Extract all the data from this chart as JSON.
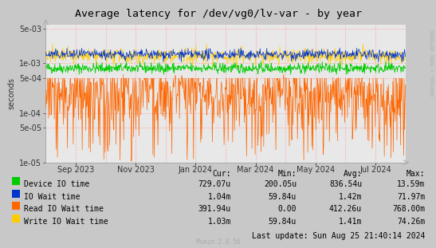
{
  "title": "Average latency for /dev/vg0/lv-var - by year",
  "ylabel": "seconds",
  "background_color": "#c8c8c8",
  "plot_background_color": "#e8e8e8",
  "grid_color": "#ffaaaa",
  "title_fontsize": 9.5,
  "axis_fontsize": 7,
  "legend_fontsize": 7,
  "ylim_log": [
    1e-05,
    0.006
  ],
  "yticks": [
    1e-05,
    5e-05,
    0.0001,
    0.0005,
    0.001,
    0.005
  ],
  "ytick_labels": [
    "1e-05",
    "5e-05",
    "1e-04",
    "5e-04",
    "1e-03",
    "5e-03"
  ],
  "x_labels": [
    "Sep 2023",
    "Nov 2023",
    "Jan 2024",
    "Mar 2024",
    "May 2024",
    "Jul 2024"
  ],
  "colors": {
    "device_io": "#00cc00",
    "io_wait": "#0033cc",
    "read_io_wait": "#ff6600",
    "write_io_wait": "#ffcc00"
  },
  "legend_entries": [
    {
      "label": "Device IO time",
      "color": "#00cc00"
    },
    {
      "label": "IO Wait time",
      "color": "#0033cc"
    },
    {
      "label": "Read IO Wait time",
      "color": "#ff6600"
    },
    {
      "label": "Write IO Wait time",
      "color": "#ffcc00"
    }
  ],
  "table_headers": [
    "Cur:",
    "Min:",
    "Avg:",
    "Max:"
  ],
  "table_rows": [
    [
      "Device IO time",
      "729.07u",
      "200.05u",
      "836.54u",
      "13.59m"
    ],
    [
      "IO Wait time",
      "1.04m",
      "59.84u",
      "1.42m",
      "71.97m"
    ],
    [
      "Read IO Wait time",
      "391.94u",
      "0.00",
      "412.26u",
      "768.00m"
    ],
    [
      "Write IO Wait time",
      "1.03m",
      "59.84u",
      "1.41m",
      "74.26m"
    ]
  ],
  "last_update": "Last update: Sun Aug 25 21:40:14 2024",
  "munin_version": "Munin 2.0.56",
  "rrdtool_label": "RRDTOOL / TOBI OETIKER",
  "num_points": 800
}
